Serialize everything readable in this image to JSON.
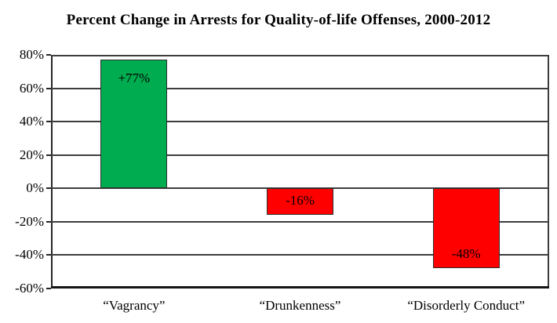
{
  "chart_data": {
    "type": "bar",
    "title": "Percent Change in Arrests for Quality-of-life Offenses, 2000-2012",
    "categories": [
      "“Vagrancy”",
      "“Drunkenness”",
      "“Disorderly Conduct”"
    ],
    "values": [
      77,
      -16,
      -48
    ],
    "data_labels": [
      "+77%",
      "-16%",
      "-48%"
    ],
    "bar_colors": [
      "#00AC50",
      "#FF0000",
      "#FF0000"
    ],
    "xlabel": "",
    "ylabel": "",
    "ylim": [
      -60,
      80
    ],
    "ytick_step": 20,
    "ytick_labels_top_to_bottom": [
      "80%",
      "60%",
      "40%",
      "20%",
      "0%",
      "-20%",
      "-40%",
      "-60%"
    ],
    "grid": true,
    "legend": "none",
    "colors": {
      "positive_bar": "#00AC50",
      "negative_bar": "#FF0000",
      "gridline": "#3d3d3d",
      "text": "#000000",
      "background": "#ffffff"
    }
  }
}
